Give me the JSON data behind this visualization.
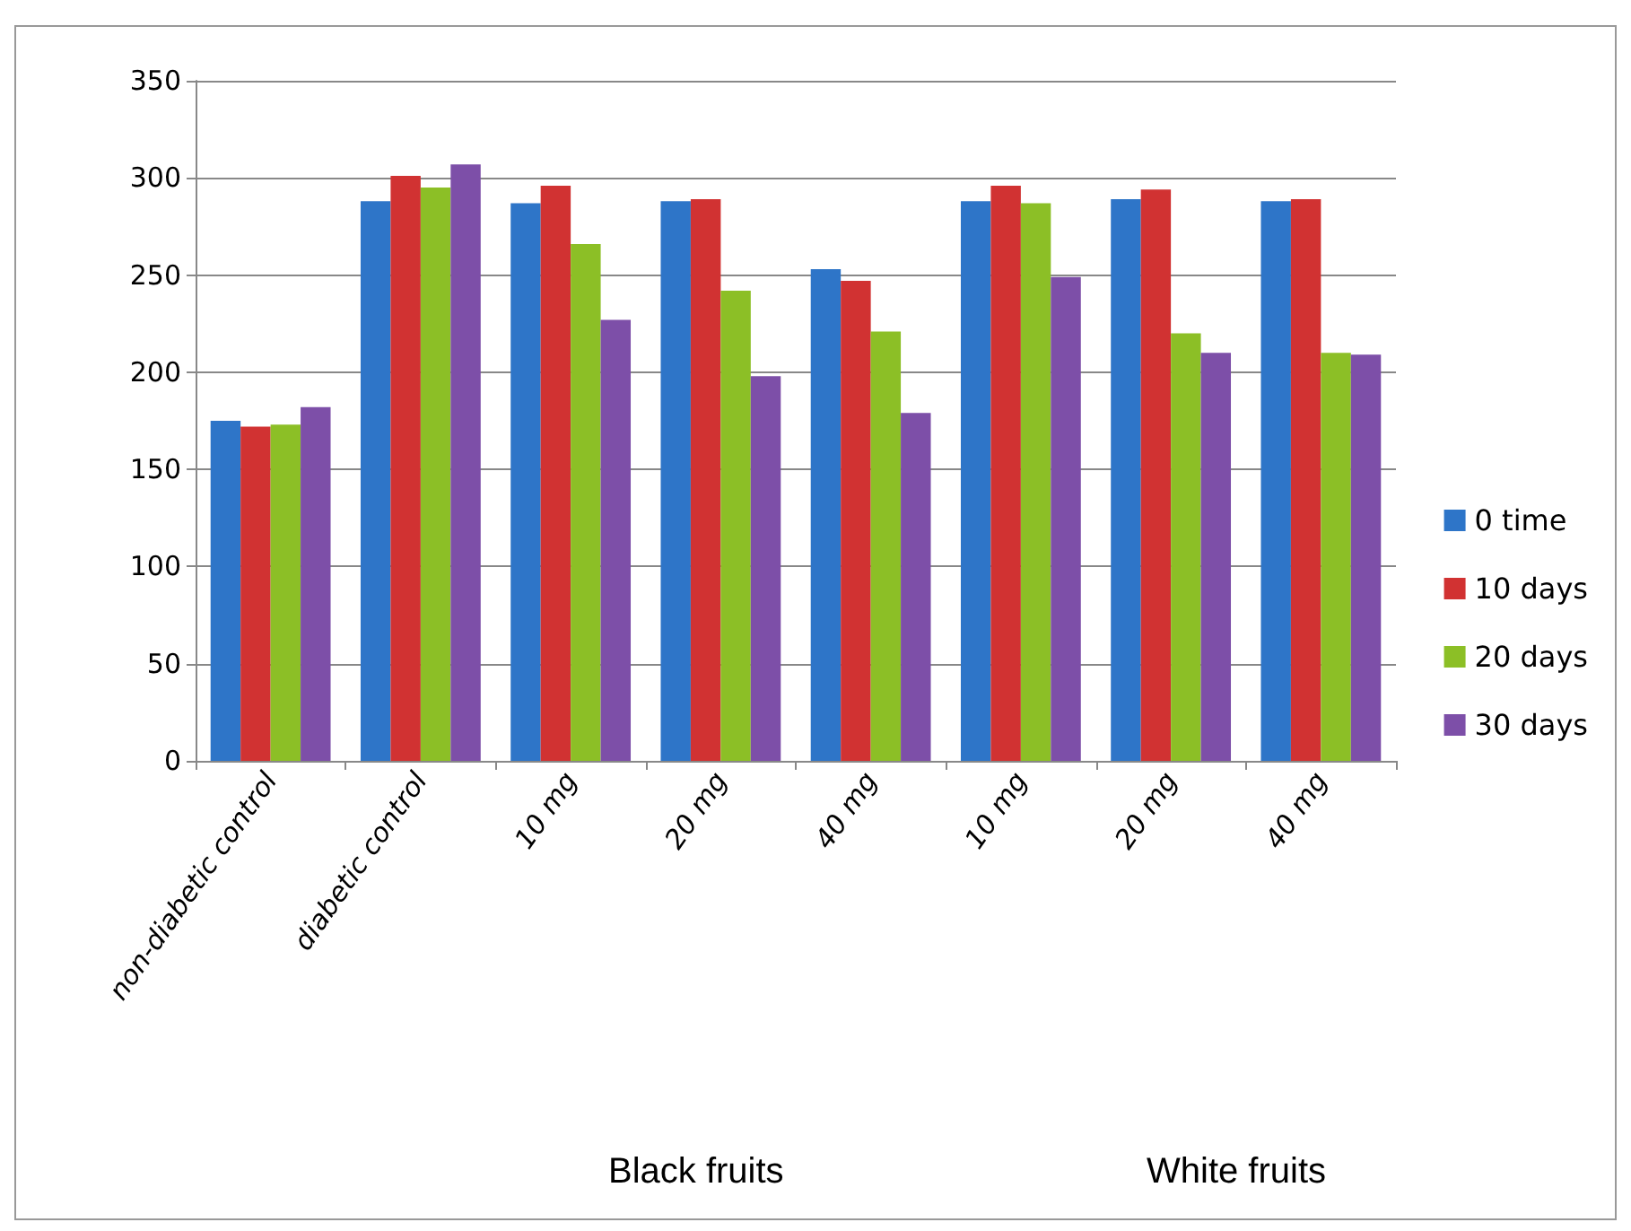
{
  "chart_data": {
    "type": "bar",
    "categories": [
      "non-diabetic control",
      "diabetic control",
      "10 mg",
      "20 mg",
      "40 mg",
      "10 mg",
      "20 mg",
      "40 mg"
    ],
    "series": [
      {
        "name": "0 time",
        "color": "#2e75c8",
        "values": [
          175,
          288,
          287,
          288,
          253,
          288,
          289,
          288
        ]
      },
      {
        "name": "10 days",
        "color": "#d13232",
        "values": [
          172,
          301,
          296,
          289,
          247,
          296,
          294,
          289
        ]
      },
      {
        "name": "20 days",
        "color": "#8cbf26",
        "values": [
          173,
          295,
          266,
          242,
          221,
          287,
          220,
          210
        ]
      },
      {
        "name": "30 days",
        "color": "#7d4fa8",
        "values": [
          182,
          307,
          227,
          198,
          179,
          249,
          210,
          209
        ]
      }
    ],
    "ylim": [
      0,
      350
    ],
    "yticks": [
      0,
      50,
      100,
      150,
      200,
      250,
      300,
      350
    ],
    "grid": "y",
    "legend": "right",
    "annotations": [
      "Black fruits",
      "White fruits"
    ]
  }
}
